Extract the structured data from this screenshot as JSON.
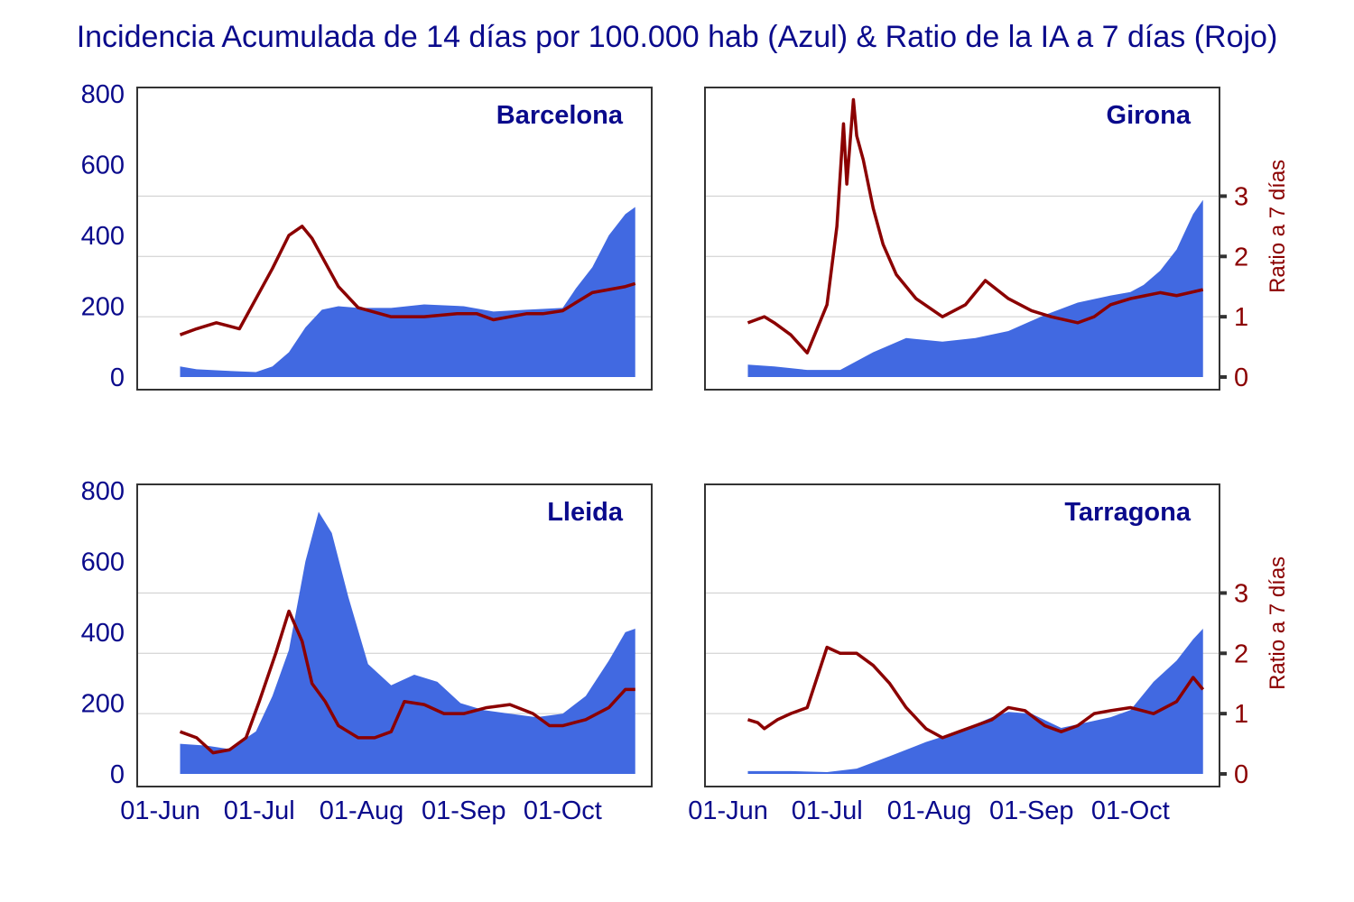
{
  "title": "Incidencia Acumulada de 14 días por 100.000 hab (Azul) & Ratio de la IA a 7 días (Rojo)",
  "colors": {
    "area": "#4169e1",
    "ratio_line": "#8b0000",
    "text": "#0a0a8c",
    "grid": "#cccccc"
  },
  "chart_data": [
    {
      "type": "area",
      "panel": "Barcelona",
      "x_ticks": [
        "01-Jun",
        "01-Jul",
        "01-Aug",
        "01-Sep",
        "01-Oct"
      ],
      "show_x_ticks": false,
      "yticks_left": [
        "0",
        "200",
        "400",
        "600",
        "800"
      ],
      "ylim_left": [
        0,
        800
      ],
      "ylim_right": [
        0,
        4.7
      ],
      "show_right_axis": false,
      "grid": "horizontal at ratio 1, 2, 3",
      "series": [
        {
          "kind": "area",
          "axis": "left",
          "x": [
            "2020-06-07",
            "2020-06-12",
            "2020-06-20",
            "2020-06-30",
            "2020-07-05",
            "2020-07-10",
            "2020-07-15",
            "2020-07-20",
            "2020-07-25",
            "2020-07-31",
            "2020-08-10",
            "2020-08-20",
            "2020-09-01",
            "2020-09-10",
            "2020-09-20",
            "2020-10-01",
            "2020-10-05",
            "2020-10-10",
            "2020-10-15",
            "2020-10-20",
            "2020-10-23"
          ],
          "values": [
            30,
            22,
            18,
            14,
            30,
            70,
            140,
            190,
            200,
            195,
            195,
            205,
            200,
            185,
            190,
            195,
            250,
            310,
            400,
            460,
            480
          ]
        },
        {
          "kind": "line",
          "axis": "right",
          "x": [
            "2020-06-07",
            "2020-06-12",
            "2020-06-18",
            "2020-06-25",
            "2020-07-01",
            "2020-07-05",
            "2020-07-10",
            "2020-07-14",
            "2020-07-17",
            "2020-07-20",
            "2020-07-25",
            "2020-07-31",
            "2020-08-10",
            "2020-08-20",
            "2020-08-30",
            "2020-09-05",
            "2020-09-10",
            "2020-09-20",
            "2020-09-25",
            "2020-10-01",
            "2020-10-10",
            "2020-10-20",
            "2020-10-23"
          ],
          "values": [
            0.7,
            0.8,
            0.9,
            0.8,
            1.4,
            1.8,
            2.35,
            2.5,
            2.3,
            2.0,
            1.5,
            1.15,
            1.0,
            1.0,
            1.05,
            1.05,
            0.95,
            1.05,
            1.05,
            1.1,
            1.4,
            1.5,
            1.55
          ]
        }
      ]
    },
    {
      "type": "area",
      "panel": "Girona",
      "x_ticks": [
        "01-Jun",
        "01-Jul",
        "01-Aug",
        "01-Sep",
        "01-Oct"
      ],
      "show_x_ticks": false,
      "ylim_left": [
        0,
        800
      ],
      "ylim_right": [
        0,
        4.7
      ],
      "show_left_ticks": false,
      "yticks_right": [
        "0",
        "1",
        "2",
        "3"
      ],
      "ylabel_right": "Ratio a 7 días",
      "grid": "horizontal at ratio 1, 2, 3",
      "series": [
        {
          "kind": "area",
          "axis": "left",
          "x": [
            "2020-06-07",
            "2020-06-15",
            "2020-06-25",
            "2020-07-05",
            "2020-07-15",
            "2020-07-25",
            "2020-08-05",
            "2020-08-15",
            "2020-08-25",
            "2020-09-05",
            "2020-09-15",
            "2020-09-25",
            "2020-10-01",
            "2020-10-05",
            "2020-10-10",
            "2020-10-15",
            "2020-10-20",
            "2020-10-23"
          ],
          "values": [
            35,
            30,
            20,
            20,
            70,
            110,
            100,
            110,
            130,
            175,
            210,
            230,
            240,
            260,
            300,
            360,
            460,
            500
          ]
        },
        {
          "kind": "line",
          "axis": "right",
          "x": [
            "2020-06-07",
            "2020-06-12",
            "2020-06-15",
            "2020-06-20",
            "2020-06-25",
            "2020-07-01",
            "2020-07-04",
            "2020-07-06",
            "2020-07-07",
            "2020-07-09",
            "2020-07-10",
            "2020-07-12",
            "2020-07-15",
            "2020-07-18",
            "2020-07-22",
            "2020-07-28",
            "2020-08-05",
            "2020-08-12",
            "2020-08-18",
            "2020-08-25",
            "2020-09-01",
            "2020-09-07",
            "2020-09-15",
            "2020-09-20",
            "2020-09-25",
            "2020-10-01",
            "2020-10-10",
            "2020-10-15",
            "2020-10-23"
          ],
          "values": [
            0.9,
            1.0,
            0.9,
            0.7,
            0.4,
            1.2,
            2.5,
            4.2,
            3.2,
            4.6,
            4.0,
            3.6,
            2.8,
            2.2,
            1.7,
            1.3,
            1.0,
            1.2,
            1.6,
            1.3,
            1.1,
            1.0,
            0.9,
            1.0,
            1.2,
            1.3,
            1.4,
            1.35,
            1.45
          ]
        }
      ]
    },
    {
      "type": "area",
      "panel": "Lleida",
      "x_ticks": [
        "01-Jun",
        "01-Jul",
        "01-Aug",
        "01-Sep",
        "01-Oct"
      ],
      "show_x_ticks": true,
      "yticks_left": [
        "0",
        "200",
        "400",
        "600",
        "800"
      ],
      "ylim_left": [
        0,
        800
      ],
      "ylim_right": [
        0,
        4.7
      ],
      "show_right_axis": false,
      "grid": "horizontal at ratio 1, 2, 3",
      "series": [
        {
          "kind": "area",
          "axis": "left",
          "x": [
            "2020-06-07",
            "2020-06-15",
            "2020-06-22",
            "2020-06-30",
            "2020-07-05",
            "2020-07-10",
            "2020-07-15",
            "2020-07-19",
            "2020-07-23",
            "2020-07-28",
            "2020-08-03",
            "2020-08-10",
            "2020-08-17",
            "2020-08-24",
            "2020-08-31",
            "2020-09-07",
            "2020-09-15",
            "2020-09-23",
            "2020-10-01",
            "2020-10-08",
            "2020-10-15",
            "2020-10-20",
            "2020-10-23"
          ],
          "values": [
            85,
            80,
            70,
            120,
            220,
            350,
            600,
            740,
            680,
            500,
            310,
            250,
            280,
            260,
            200,
            180,
            170,
            160,
            170,
            220,
            320,
            400,
            410
          ]
        },
        {
          "kind": "line",
          "axis": "right",
          "x": [
            "2020-06-07",
            "2020-06-12",
            "2020-06-17",
            "2020-06-22",
            "2020-06-27",
            "2020-07-01",
            "2020-07-06",
            "2020-07-10",
            "2020-07-14",
            "2020-07-17",
            "2020-07-21",
            "2020-07-25",
            "2020-07-31",
            "2020-08-05",
            "2020-08-10",
            "2020-08-14",
            "2020-08-20",
            "2020-08-26",
            "2020-09-01",
            "2020-09-08",
            "2020-09-15",
            "2020-09-22",
            "2020-09-27",
            "2020-10-01",
            "2020-10-08",
            "2020-10-15",
            "2020-10-20",
            "2020-10-23"
          ],
          "values": [
            0.7,
            0.6,
            0.35,
            0.4,
            0.6,
            1.2,
            2.0,
            2.7,
            2.2,
            1.5,
            1.2,
            0.8,
            0.6,
            0.6,
            0.7,
            1.2,
            1.15,
            1.0,
            1.0,
            1.1,
            1.15,
            1.0,
            0.8,
            0.8,
            0.9,
            1.1,
            1.4,
            1.4
          ]
        }
      ]
    },
    {
      "type": "area",
      "panel": "Tarragona",
      "x_ticks": [
        "01-Jun",
        "01-Jul",
        "01-Aug",
        "01-Sep",
        "01-Oct"
      ],
      "show_x_ticks": true,
      "ylim_left": [
        0,
        800
      ],
      "ylim_right": [
        0,
        4.7
      ],
      "show_left_ticks": false,
      "yticks_right": [
        "0",
        "1",
        "2",
        "3"
      ],
      "ylabel_right": "Ratio a 7 días",
      "grid": "horizontal at ratio 1, 2, 3",
      "series": [
        {
          "kind": "area",
          "axis": "left",
          "x": [
            "2020-06-07",
            "2020-06-20",
            "2020-07-01",
            "2020-07-10",
            "2020-07-20",
            "2020-07-31",
            "2020-08-10",
            "2020-08-20",
            "2020-08-25",
            "2020-09-01",
            "2020-09-10",
            "2020-09-20",
            "2020-09-25",
            "2020-10-01",
            "2020-10-08",
            "2020-10-15",
            "2020-10-20",
            "2020-10-23"
          ],
          "values": [
            8,
            8,
            5,
            15,
            50,
            90,
            120,
            160,
            175,
            170,
            130,
            150,
            160,
            180,
            260,
            320,
            380,
            410
          ]
        },
        {
          "kind": "line",
          "axis": "right",
          "x": [
            "2020-06-07",
            "2020-06-10",
            "2020-06-12",
            "2020-06-16",
            "2020-06-20",
            "2020-06-25",
            "2020-07-01",
            "2020-07-05",
            "2020-07-10",
            "2020-07-15",
            "2020-07-20",
            "2020-07-25",
            "2020-07-31",
            "2020-08-05",
            "2020-08-10",
            "2020-08-15",
            "2020-08-20",
            "2020-08-25",
            "2020-08-30",
            "2020-09-05",
            "2020-09-10",
            "2020-09-15",
            "2020-09-20",
            "2020-09-25",
            "2020-10-01",
            "2020-10-08",
            "2020-10-15",
            "2020-10-20",
            "2020-10-23"
          ],
          "values": [
            0.9,
            0.85,
            0.75,
            0.9,
            1.0,
            1.1,
            2.1,
            2.0,
            2.0,
            1.8,
            1.5,
            1.1,
            0.75,
            0.6,
            0.7,
            0.8,
            0.9,
            1.1,
            1.05,
            0.8,
            0.7,
            0.8,
            1.0,
            1.05,
            1.1,
            1.0,
            1.2,
            1.6,
            1.4
          ]
        }
      ]
    }
  ]
}
